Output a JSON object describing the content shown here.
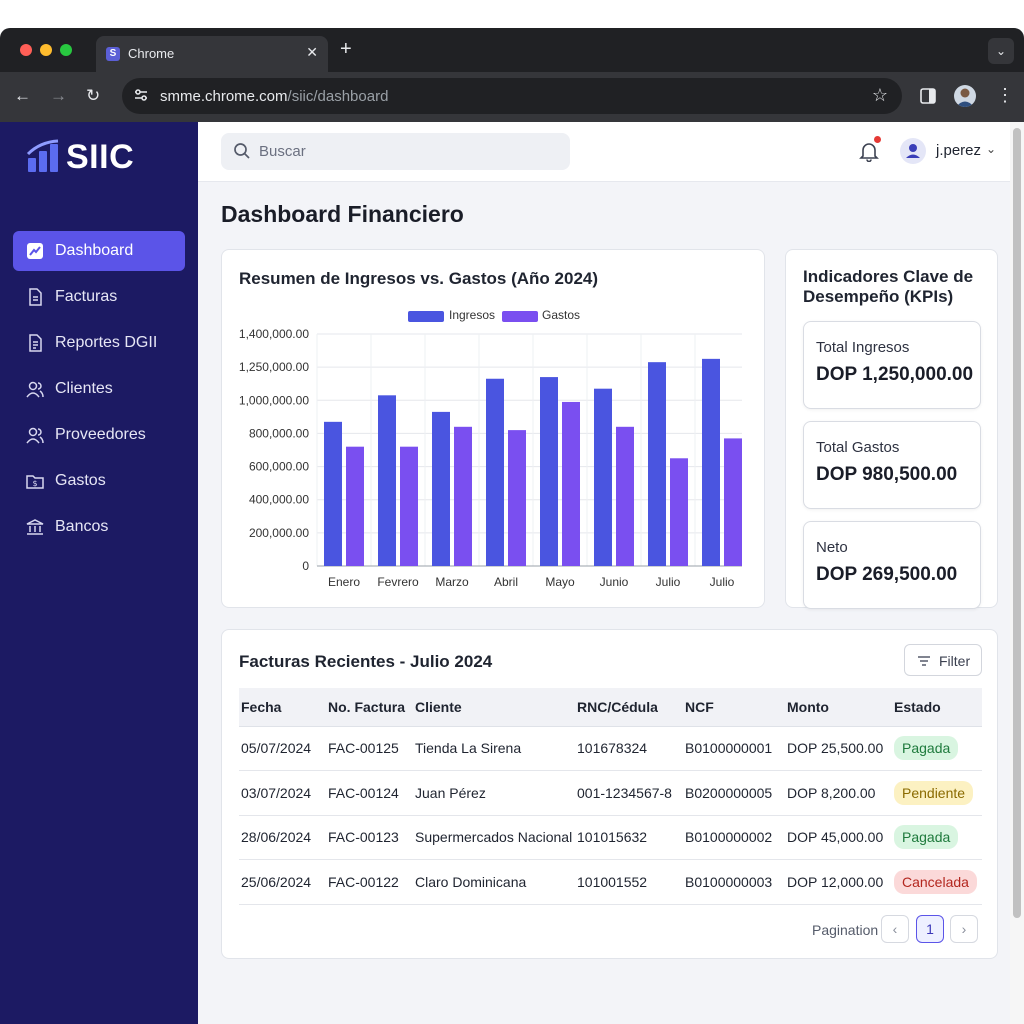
{
  "browser": {
    "tab_title": "Chrome",
    "tab_favicon": "S",
    "url_host": "smme.chrome.com",
    "url_path": "/siic/dashboard",
    "icons": [
      "back-icon",
      "forward-icon",
      "reload-icon",
      "site-settings-icon",
      "star-icon",
      "side-panel-icon",
      "profile-avatar",
      "menu-icon"
    ]
  },
  "app": {
    "logo": "SIIC",
    "accent": "#5b54e8",
    "sidebar_bg": "#1c1a63"
  },
  "sidebar": {
    "items": [
      {
        "label": "Dashboard",
        "icon": "trend-icon",
        "active": true
      },
      {
        "label": "Facturas",
        "icon": "document-icon"
      },
      {
        "label": "Reportes DGII",
        "icon": "report-icon"
      },
      {
        "label": "Clientes",
        "icon": "users-icon"
      },
      {
        "label": "Proveedores",
        "icon": "users-icon"
      },
      {
        "label": "Gastos",
        "icon": "expense-folder-icon"
      },
      {
        "label": "Bancos",
        "icon": "bank-icon"
      }
    ]
  },
  "header": {
    "search_placeholder": "Buscar",
    "user_name": "j.perez"
  },
  "page": {
    "title": "Dashboard Financiero"
  },
  "chart": {
    "title": "Resumen de Ingresos vs. Gastos (Año 2024)"
  },
  "chart_data": {
    "type": "bar",
    "categories": [
      "Enero",
      "Fevrero",
      "Marzo",
      "Abril",
      "Mayo",
      "Junio",
      "Julio",
      "Julio"
    ],
    "series": [
      {
        "name": "Ingresos",
        "color": "#4a55e0",
        "values": [
          870000,
          1030000,
          930000,
          1130000,
          1140000,
          1070000,
          1230000,
          1250000
        ]
      },
      {
        "name": "Gastos",
        "color": "#7a4ff0",
        "values": [
          720000,
          720000,
          840000,
          820000,
          990000,
          840000,
          650000,
          770000
        ]
      }
    ],
    "yticks": [
      "0",
      "200,000.00",
      "400,000.00",
      "600,000.00",
      "800,000.00",
      "1,000,000.00",
      "1,250,000.00",
      "1,400,000.00"
    ],
    "ylim": [
      0,
      1400000
    ],
    "legend": "top-center",
    "grid": true
  },
  "kpis": {
    "title": "Indicadores Clave de Desempeño (KPIs)",
    "items": [
      {
        "label": "Total Ingresos",
        "value": "DOP 1,250,000.00"
      },
      {
        "label": "Total Gastos",
        "value": "DOP 980,500.00"
      },
      {
        "label": "Neto",
        "value": "DOP 269,500.00"
      }
    ]
  },
  "invoices": {
    "title": "Facturas Recientes - Julio 2024",
    "filter_label": "Filter",
    "columns": [
      "Fecha",
      "No. Factura",
      "Cliente",
      "RNC/Cédula",
      "NCF",
      "Monto",
      "Estado"
    ],
    "rows": [
      {
        "fecha": "05/07/2024",
        "factura": "FAC-00125",
        "cliente": "Tienda La Sirena",
        "rnc": "101678324",
        "ncf": "B0100000001",
        "monto": "DOP 25,500.00",
        "estado": "Pagada",
        "estado_color": "#d9f5e1",
        "estado_text": "#1e7a3c"
      },
      {
        "fecha": "03/07/2024",
        "factura": "FAC-00124",
        "cliente": "Juan Pérez",
        "rnc": "001-1234567-8",
        "ncf": "B0200000005",
        "monto": "DOP 8,200.00",
        "estado": "Pendiente",
        "estado_color": "#fcf1c2",
        "estado_text": "#8a6a00"
      },
      {
        "fecha": "28/06/2024",
        "factura": "FAC-00123",
        "cliente": "Supermercados Nacional",
        "rnc": "101015632",
        "ncf": "B0100000002",
        "monto": "DOP 45,000.00",
        "estado": "Pagada",
        "estado_color": "#d9f5e1",
        "estado_text": "#1e7a3c"
      },
      {
        "fecha": "25/06/2024",
        "factura": "FAC-00122",
        "cliente": "Claro Dominicana",
        "rnc": "101001552",
        "ncf": "B0100000003",
        "monto": "DOP 12,000.00",
        "estado": "Cancelada",
        "estado_color": "#fbd9d9",
        "estado_text": "#b3261e"
      }
    ],
    "pagination_label": "Pagination",
    "current_page": "1",
    "prev": "‹",
    "next": "›"
  }
}
